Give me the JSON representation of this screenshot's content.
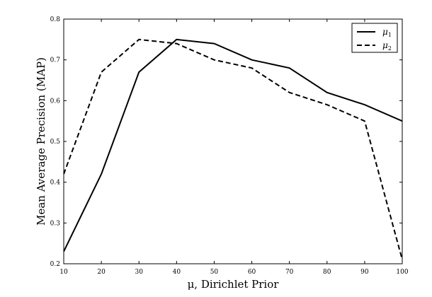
{
  "chart_data": {
    "type": "line",
    "x": [
      10,
      20,
      30,
      40,
      50,
      60,
      70,
      80,
      90,
      100
    ],
    "series": [
      {
        "name": "μ1",
        "symbol": "μ",
        "subscript": "1",
        "style": "solid",
        "color": "#000000",
        "values": [
          0.23,
          0.42,
          0.67,
          0.75,
          0.74,
          0.7,
          0.68,
          0.62,
          0.59,
          0.55
        ]
      },
      {
        "name": "μ2",
        "symbol": "μ",
        "subscript": "2",
        "style": "dashed",
        "color": "#000000",
        "values": [
          0.42,
          0.67,
          0.75,
          0.74,
          0.7,
          0.68,
          0.62,
          0.59,
          0.55,
          0.21
        ]
      }
    ],
    "xlabel": "μ, Dirichlet Prior",
    "ylabel": "Mean Average Precision (MAP)",
    "xlim": [
      10,
      100
    ],
    "ylim": [
      0.2,
      0.8
    ],
    "xticks": [
      10,
      20,
      30,
      40,
      50,
      60,
      70,
      80,
      90,
      100
    ],
    "yticks": [
      0.2,
      0.3,
      0.4,
      0.5,
      0.6,
      0.7,
      0.8
    ],
    "ytick_labels": [
      "0.2",
      "0.3",
      "0.4",
      "0.5",
      "0.6",
      "0.7",
      "0.8"
    ],
    "grid": false,
    "legend_position": "top-right"
  }
}
